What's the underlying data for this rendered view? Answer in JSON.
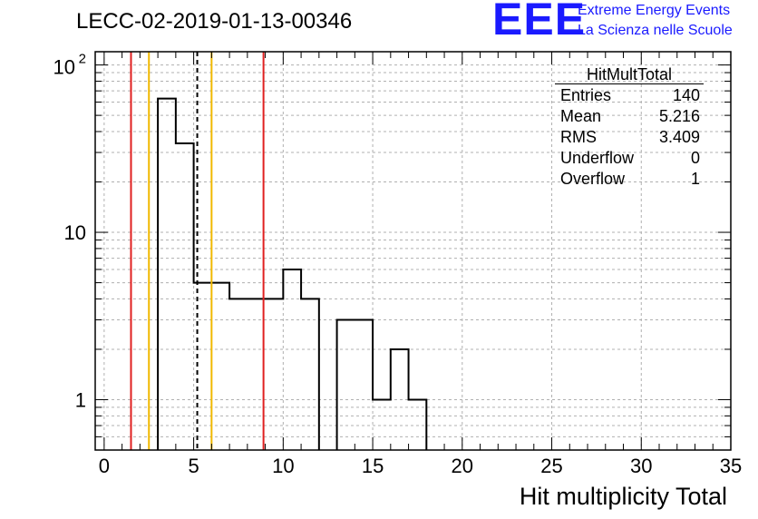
{
  "title": "LECC-02-2019-01-13-00346",
  "logo": {
    "text": "EEE",
    "line1": "Extreme Energy Events",
    "line2": "La Scienza nelle Scuole",
    "color": "#1a1aff"
  },
  "stats_box": {
    "name": "HitMultTotal",
    "rows": [
      {
        "label": "Entries",
        "value": "140"
      },
      {
        "label": "Mean",
        "value": "5.216"
      },
      {
        "label": "RMS",
        "value": "3.409"
      },
      {
        "label": "Underflow",
        "value": "0"
      },
      {
        "label": "Overflow",
        "value": "1"
      }
    ]
  },
  "chart_data": {
    "type": "bar",
    "histogram": true,
    "x": [
      2.5,
      3.5,
      4.5,
      5.5,
      6.5,
      7.5,
      8.5,
      9.5,
      10.5,
      11.5,
      12.5,
      13.5,
      14.5,
      15.5,
      16.5,
      17.5
    ],
    "bin_edges": [
      2,
      3,
      4,
      5,
      6,
      7,
      8,
      9,
      10,
      11,
      12,
      13,
      14,
      15,
      16,
      17,
      18
    ],
    "values": [
      0,
      63,
      34,
      5,
      5,
      4,
      4,
      4,
      6,
      4,
      0,
      3,
      3,
      1,
      2,
      1
    ],
    "xlabel": "Hit multiplicity Total",
    "ylabel": "",
    "xlim": [
      -0.5,
      35
    ],
    "ylim": [
      0.5,
      120
    ],
    "ylog": true,
    "grid": true,
    "x_ticks": [
      "0",
      "5",
      "10",
      "15",
      "20",
      "25",
      "30",
      "35"
    ],
    "y_ticks": [
      "1",
      "10",
      "10^2"
    ],
    "vlines": [
      {
        "x": 1.5,
        "color": "#e02020",
        "style": "solid"
      },
      {
        "x": 2.5,
        "color": "#f0b800",
        "style": "solid"
      },
      {
        "x": 5.2,
        "color": "#000000",
        "style": "dashed"
      },
      {
        "x": 6.0,
        "color": "#f0b800",
        "style": "solid"
      },
      {
        "x": 8.9,
        "color": "#e02020",
        "style": "solid"
      }
    ]
  }
}
